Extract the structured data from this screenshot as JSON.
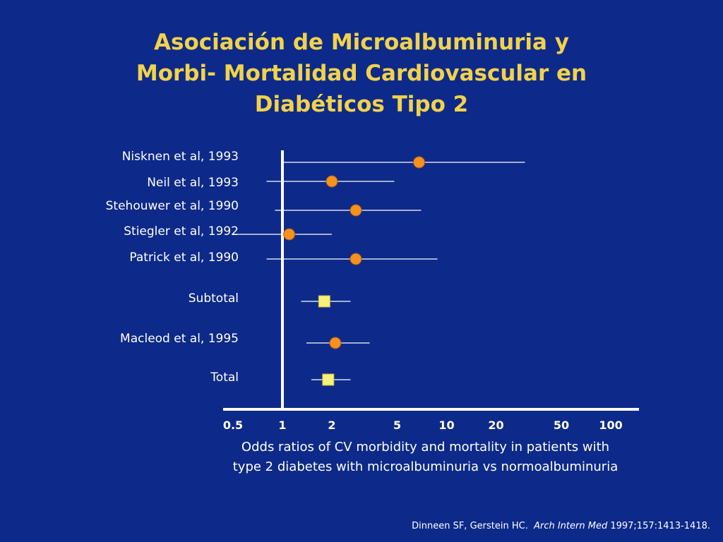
{
  "slide": {
    "title_lines": [
      "Asociación de Microalbuminuria y",
      "Morbi- Mortalidad Cardiovascular en",
      "Diabéticos Tipo 2"
    ],
    "caption_lines": [
      "Odds ratios of CV morbidity and mortality in patients with",
      "type 2 diabetes with microalbuminuria vs normoalbuminuria"
    ],
    "citation": {
      "authors": "Dinneen SF, Gerstein HC.",
      "journal": "Arch Intern Med",
      "ref": "1997;157:1413-1418."
    }
  },
  "chart_data": {
    "type": "scatter",
    "subtype": "forest-plot",
    "x_scale": "log",
    "x_ticks": [
      "0.5",
      "1",
      "2",
      "5",
      "10",
      "20",
      "50",
      "100"
    ],
    "reference_line_x": 1,
    "marker_colors": {
      "study": "#f5921e",
      "pooled": "#f7f07a"
    },
    "line_color": "#ffffff",
    "rows": [
      {
        "label": "Nisknen et al, 1993",
        "or": 6.8,
        "ci": [
          1.0,
          30
        ],
        "marker": "circle"
      },
      {
        "label": "Neil et al, 1993",
        "or": 2.0,
        "ci": [
          0.8,
          4.8
        ],
        "marker": "circle"
      },
      {
        "label": "Stehouwer et al, 1990",
        "or": 2.8,
        "ci": [
          0.9,
          7.0
        ],
        "marker": "circle"
      },
      {
        "label": "Stiegler et al, 1992",
        "or": 1.1,
        "ci": [
          0.5,
          2.0
        ],
        "marker": "circle"
      },
      {
        "label": "Patrick et al, 1990",
        "or": 2.8,
        "ci": [
          0.8,
          8.8
        ],
        "marker": "circle"
      },
      {
        "label": "Subtotal",
        "or": 1.8,
        "ci": [
          1.3,
          2.6
        ],
        "marker": "square"
      },
      {
        "label": "Macleod et al, 1995",
        "or": 2.1,
        "ci": [
          1.4,
          3.4
        ],
        "marker": "circle"
      },
      {
        "label": "Total",
        "or": 1.9,
        "ci": [
          1.5,
          2.6
        ],
        "marker": "square"
      }
    ]
  }
}
